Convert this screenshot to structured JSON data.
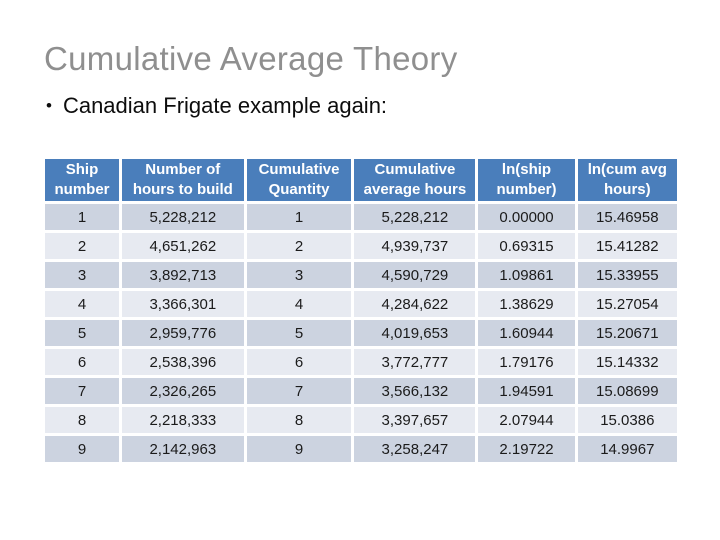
{
  "slide": {
    "title": "Cumulative Average Theory",
    "bullet_char": "•",
    "bullet_text": "Canadian Frigate example again:"
  },
  "colors": {
    "header_bg": "#4a7ebb",
    "row_dark": "#ccd3e0",
    "row_light": "#e7eaf1",
    "title_text": "#8f8f8f",
    "grid": "#ffffff"
  },
  "table": {
    "columns": [
      "Ship number",
      "Number of hours to build",
      "Cumulative Quantity",
      "Cumulative average hours",
      "ln(ship number)",
      "ln(cum avg hours)"
    ],
    "rows": [
      [
        "1",
        "5,228,212",
        "1",
        "5,228,212",
        "0.00000",
        "15.46958"
      ],
      [
        "2",
        "4,651,262",
        "2",
        "4,939,737",
        "0.69315",
        "15.41282"
      ],
      [
        "3",
        "3,892,713",
        "3",
        "4,590,729",
        "1.09861",
        "15.33955"
      ],
      [
        "4",
        "3,366,301",
        "4",
        "4,284,622",
        "1.38629",
        "15.27054"
      ],
      [
        "5",
        "2,959,776",
        "5",
        "4,019,653",
        "1.60944",
        "15.20671"
      ],
      [
        "6",
        "2,538,396",
        "6",
        "3,772,777",
        "1.79176",
        "15.14332"
      ],
      [
        "7",
        "2,326,265",
        "7",
        "3,566,132",
        "1.94591",
        "15.08699"
      ],
      [
        "8",
        "2,218,333",
        "8",
        "3,397,657",
        "2.07944",
        "15.0386"
      ],
      [
        "9",
        "2,142,963",
        "9",
        "3,258,247",
        "2.19722",
        "14.9967"
      ]
    ]
  }
}
